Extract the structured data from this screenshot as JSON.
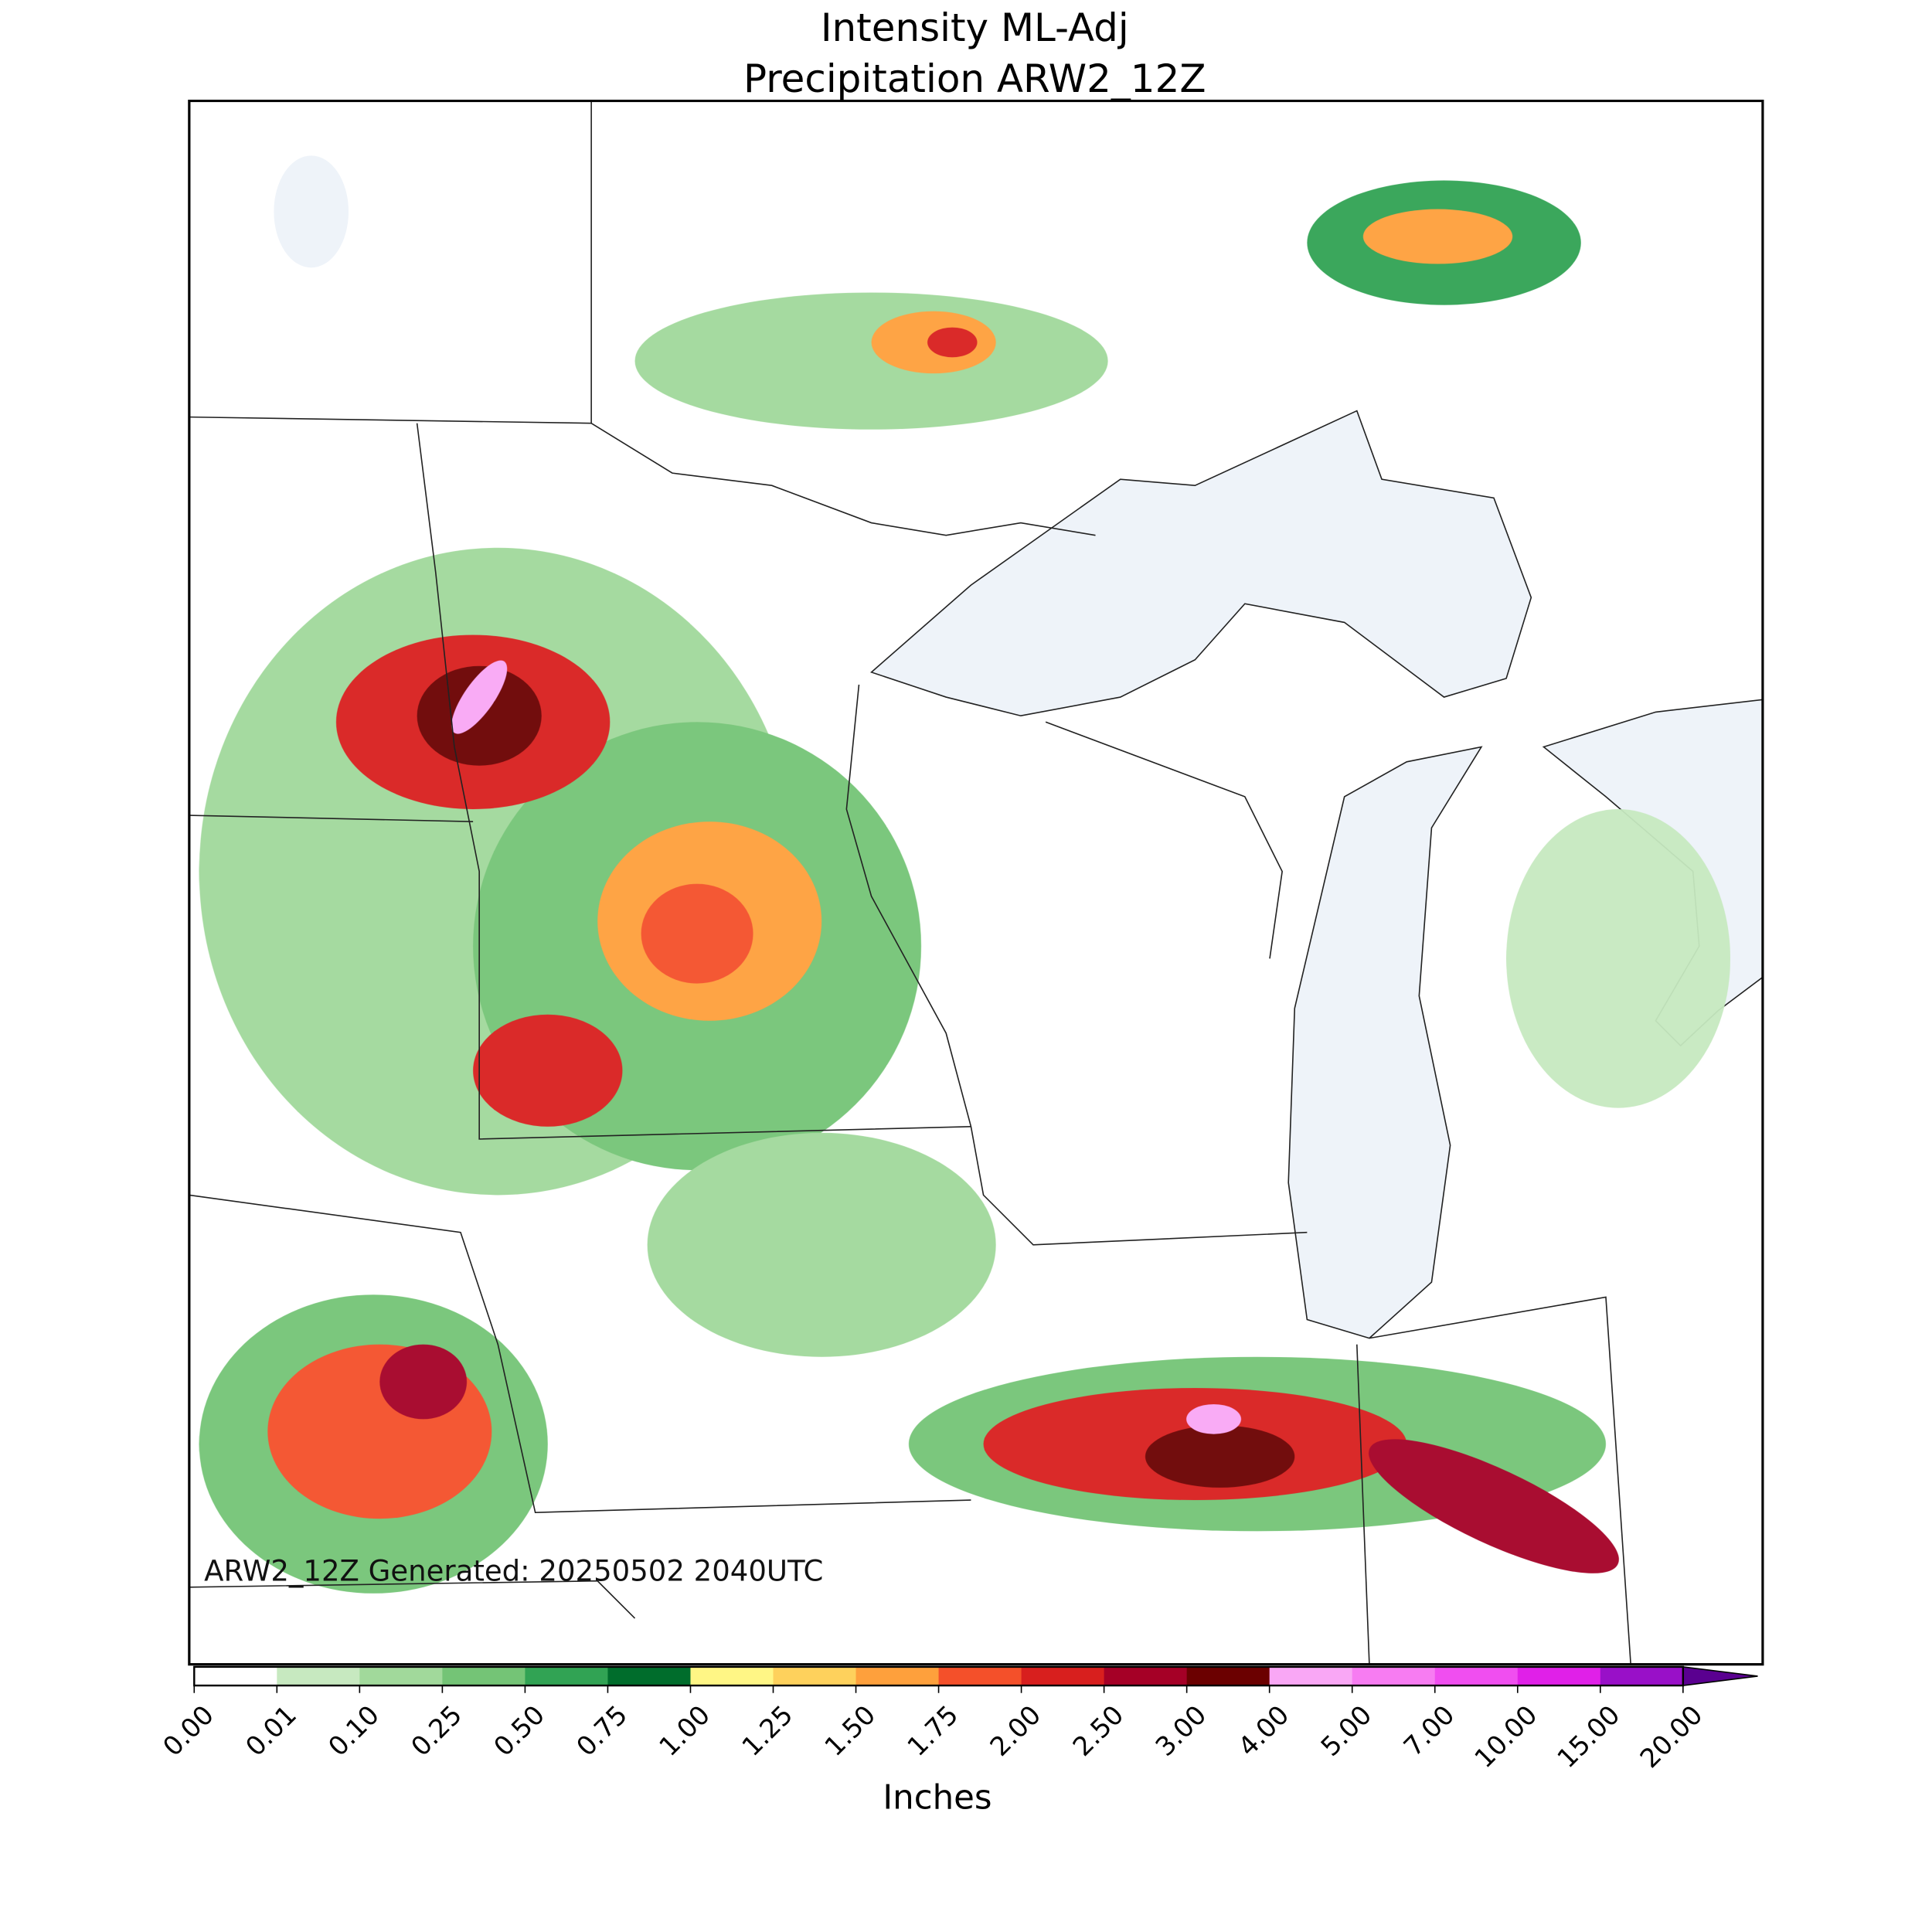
{
  "title": [
    "Intensity ML-Adj",
    "Precipitation ARW2_12Z"
  ],
  "annotation": "ARW2_12Z Generated: 20250502 2040UTC",
  "colorbar": {
    "label": "Inches",
    "ticks": [
      {
        "value": 0,
        "label": "0.00"
      },
      {
        "value": 0.01,
        "label": "0.01"
      },
      {
        "value": 0.1,
        "label": "0.10"
      },
      {
        "value": 0.25,
        "label": "0.25"
      },
      {
        "value": 0.5,
        "label": "0.50"
      },
      {
        "value": 0.75,
        "label": "0.75"
      },
      {
        "value": 1,
        "label": "1.00"
      },
      {
        "value": 1.25,
        "label": "1.25"
      },
      {
        "value": 1.5,
        "label": "1.50"
      },
      {
        "value": 1.75,
        "label": "1.75"
      },
      {
        "value": 2,
        "label": "2.00"
      },
      {
        "value": 2.5,
        "label": "2.50"
      },
      {
        "value": 3,
        "label": "3.00"
      },
      {
        "value": 4,
        "label": "4.00"
      },
      {
        "value": 5,
        "label": "5.00"
      },
      {
        "value": 7,
        "label": "7.00"
      },
      {
        "value": 10,
        "label": "10.00"
      },
      {
        "value": 15,
        "label": "15.00"
      },
      {
        "value": 20,
        "label": "20.00"
      }
    ],
    "colors": [
      "#ffffff",
      "#c7e9c0",
      "#a1d99b",
      "#74c476",
      "#31a354",
      "#006d2c",
      "#fff685",
      "#fed15c",
      "#fea03c",
      "#f4502a",
      "#d81f1e",
      "#a50026",
      "#6b0000",
      "#f9a7f5",
      "#f77cf2",
      "#f04ef0",
      "#e020e8",
      "#9910c8"
    ],
    "extend_color": "#5a0090"
  }
}
